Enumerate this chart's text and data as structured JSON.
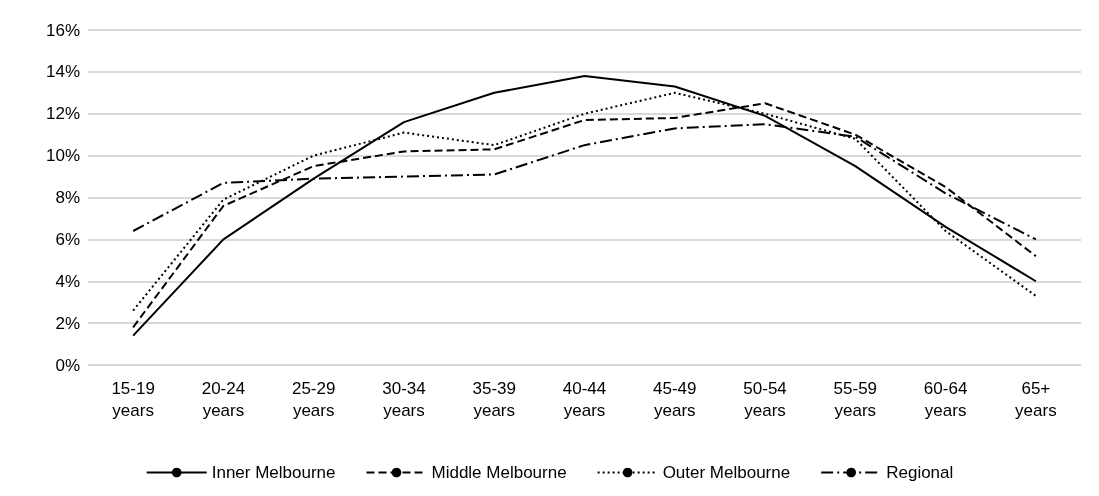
{
  "chart_data": {
    "type": "line",
    "categories": [
      "15-19 years",
      "20-24 years",
      "25-29 years",
      "30-34 years",
      "35-39 years",
      "40-44 years",
      "45-49 years",
      "50-54 years",
      "55-59 years",
      "60-64 years",
      "65+ years"
    ],
    "series": [
      {
        "name": "Inner Melbourne",
        "color": "#000000",
        "line_style": "solid",
        "values": [
          1.4,
          6.0,
          8.9,
          11.6,
          13.0,
          13.8,
          13.3,
          11.9,
          9.5,
          6.6,
          4.0
        ]
      },
      {
        "name": "Middle Melbourne",
        "color": "#000000",
        "line_style": "dashed",
        "values": [
          1.8,
          7.6,
          9.5,
          10.2,
          10.3,
          11.7,
          11.8,
          12.5,
          11.0,
          8.5,
          5.2
        ]
      },
      {
        "name": "Outer Melbourne",
        "color": "#000000",
        "line_style": "dotted",
        "values": [
          2.6,
          7.9,
          10.0,
          11.1,
          10.5,
          12.0,
          13.0,
          12.0,
          10.8,
          6.4,
          3.3
        ]
      },
      {
        "name": "Regional",
        "color": "#000000",
        "line_style": "dashdot",
        "values": [
          6.4,
          8.7,
          8.9,
          9.0,
          9.1,
          10.5,
          11.3,
          11.5,
          10.9,
          8.2,
          6.0
        ]
      }
    ],
    "ylim": [
      0,
      16
    ],
    "yticks": [
      {
        "value": 0,
        "label": "0%"
      },
      {
        "value": 2,
        "label": "2%"
      },
      {
        "value": 4,
        "label": "4%"
      },
      {
        "value": 6,
        "label": "6%"
      },
      {
        "value": 8,
        "label": "8%"
      },
      {
        "value": 10,
        "label": "10%"
      },
      {
        "value": 12,
        "label": "12%"
      },
      {
        "value": 14,
        "label": "14%"
      },
      {
        "value": 16,
        "label": "16%"
      }
    ],
    "grid": "y",
    "legend": "bottom",
    "marker": "none"
  }
}
